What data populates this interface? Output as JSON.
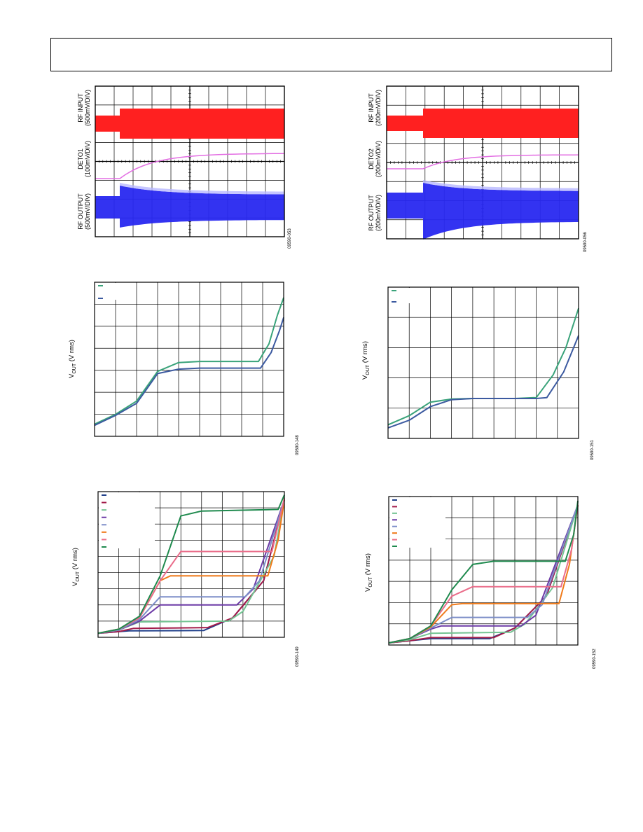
{
  "chart_data": [
    {
      "id": "scope1",
      "type": "line",
      "channels": [
        {
          "label_line1": "RF INPUT",
          "label_line2": "(500mV/DIV)",
          "color": "#ff2020"
        },
        {
          "label_line1": "DETO1",
          "label_line2": "(100mV/DIV)",
          "color": "#e36ee3"
        },
        {
          "label_line1": "RF OUTPUT",
          "label_line2": "(500mV/DIV)",
          "color": "#2828f0"
        }
      ],
      "grid": true,
      "figure_id": "09590-053"
    },
    {
      "id": "scope2",
      "type": "line",
      "channels": [
        {
          "label_line1": "RF INPUT",
          "label_line2": "(200mV/DIV)",
          "color": "#ff2020"
        },
        {
          "label_line1": "DETO2",
          "label_line2": "(200mV/DIV)",
          "color": "#e36ee3"
        },
        {
          "label_line1": "RF OUTPUT",
          "label_line2": "(200mV/DIV)",
          "color": "#2828f0"
        }
      ],
      "grid": true,
      "figure_id": "09590-056"
    },
    {
      "id": "xfer1",
      "type": "line",
      "ylabel_main": "V",
      "ylabel_sub": "OUT",
      "ylabel_tail": " (V rms)",
      "xlim": [
        0,
        9
      ],
      "ylim": [
        0,
        7
      ],
      "grid": true,
      "legend_position": "top-left",
      "series": [
        {
          "color": "#3aa37a",
          "values": [
            [
              0,
              0.55
            ],
            [
              1,
              1.0
            ],
            [
              2,
              1.6
            ],
            [
              3,
              2.95
            ],
            [
              4,
              3.35
            ],
            [
              5,
              3.4
            ],
            [
              6,
              3.4
            ],
            [
              7,
              3.4
            ],
            [
              7.8,
              3.4
            ],
            [
              8.3,
              4.2
            ],
            [
              8.7,
              5.5
            ],
            [
              9,
              6.3
            ]
          ]
        },
        {
          "color": "#3c5aa0",
          "values": [
            [
              0,
              0.5
            ],
            [
              1,
              0.95
            ],
            [
              2,
              1.5
            ],
            [
              3,
              2.85
            ],
            [
              4,
              3.05
            ],
            [
              5,
              3.1
            ],
            [
              6,
              3.1
            ],
            [
              7,
              3.1
            ],
            [
              7.9,
              3.1
            ],
            [
              8.4,
              3.8
            ],
            [
              8.8,
              4.8
            ],
            [
              9,
              5.4
            ]
          ]
        }
      ],
      "figure_id": "09590-148"
    },
    {
      "id": "xfer2",
      "type": "line",
      "ylabel_main": "V",
      "ylabel_sub": "OUT",
      "ylabel_tail": " (V rms)",
      "xlim": [
        0,
        9
      ],
      "ylim": [
        0,
        5
      ],
      "grid": true,
      "legend_position": "top-left",
      "series": [
        {
          "color": "#3aa37a",
          "values": [
            [
              0,
              0.45
            ],
            [
              1,
              0.75
            ],
            [
              2,
              1.2
            ],
            [
              3,
              1.3
            ],
            [
              4,
              1.32
            ],
            [
              5,
              1.32
            ],
            [
              6,
              1.32
            ],
            [
              7,
              1.35
            ],
            [
              7.8,
              2.1
            ],
            [
              8.4,
              3.0
            ],
            [
              9,
              4.3
            ]
          ]
        },
        {
          "color": "#3c5aa0",
          "values": [
            [
              0,
              0.35
            ],
            [
              1,
              0.6
            ],
            [
              2,
              1.05
            ],
            [
              3,
              1.28
            ],
            [
              4,
              1.32
            ],
            [
              5,
              1.32
            ],
            [
              6,
              1.32
            ],
            [
              7,
              1.32
            ],
            [
              7.5,
              1.35
            ],
            [
              8.3,
              2.2
            ],
            [
              9,
              3.4
            ]
          ]
        }
      ],
      "figure_id": "09590-151"
    },
    {
      "id": "xfer3",
      "type": "line",
      "ylabel_main": "V",
      "ylabel_sub": "OUT",
      "ylabel_tail": " (V rms)",
      "xlim": [
        0,
        9
      ],
      "ylim": [
        0,
        9
      ],
      "grid": true,
      "legend_position": "top-left",
      "series": [
        {
          "color": "#1f3f8a",
          "values": [
            [
              0,
              0.25
            ],
            [
              1,
              0.35
            ],
            [
              1.5,
              0.4
            ],
            [
              5.1,
              0.42
            ],
            [
              6.5,
              1.2
            ],
            [
              8,
              3.5
            ],
            [
              9,
              8.5
            ]
          ]
        },
        {
          "color": "#a31c4a",
          "values": [
            [
              0,
              0.25
            ],
            [
              1,
              0.35
            ],
            [
              1.7,
              0.55
            ],
            [
              5.3,
              0.6
            ],
            [
              6.5,
              1.2
            ],
            [
              8,
              3.5
            ],
            [
              9,
              8.5
            ]
          ]
        },
        {
          "color": "#74c493",
          "values": [
            [
              0,
              0.25
            ],
            [
              1,
              0.45
            ],
            [
              2,
              0.95
            ],
            [
              6.3,
              1.0
            ],
            [
              7,
              1.6
            ],
            [
              8.5,
              5.0
            ],
            [
              9,
              8.5
            ]
          ]
        },
        {
          "color": "#6c3aa6",
          "values": [
            [
              0,
              0.25
            ],
            [
              1,
              0.45
            ],
            [
              2,
              1.0
            ],
            [
              3,
              2.0
            ],
            [
              6.7,
              2.0
            ],
            [
              7.5,
              3.0
            ],
            [
              9,
              8.5
            ]
          ]
        },
        {
          "color": "#7c8ec8",
          "values": [
            [
              0,
              0.25
            ],
            [
              1,
              0.45
            ],
            [
              2,
              1.1
            ],
            [
              3,
              2.5
            ],
            [
              7.1,
              2.5
            ],
            [
              7.8,
              3.5
            ],
            [
              9,
              8.5
            ]
          ]
        },
        {
          "color": "#f07b1b",
          "values": [
            [
              0,
              0.25
            ],
            [
              1,
              0.5
            ],
            [
              2,
              1.2
            ],
            [
              3,
              3.5
            ],
            [
              3.5,
              3.8
            ],
            [
              8.2,
              3.8
            ],
            [
              8.7,
              6.0
            ],
            [
              9,
              8.5
            ]
          ]
        },
        {
          "color": "#ea6d8a",
          "values": [
            [
              0,
              0.25
            ],
            [
              1,
              0.5
            ],
            [
              2,
              1.2
            ],
            [
              3,
              3.5
            ],
            [
              4,
              5.3
            ],
            [
              8.4,
              5.3
            ],
            [
              8.8,
              7.5
            ],
            [
              9,
              8.6
            ]
          ]
        },
        {
          "color": "#1f8a4e",
          "values": [
            [
              0,
              0.25
            ],
            [
              1,
              0.5
            ],
            [
              2,
              1.3
            ],
            [
              3,
              3.8
            ],
            [
              4,
              7.5
            ],
            [
              5,
              7.8
            ],
            [
              8.7,
              7.9
            ],
            [
              9,
              8.8
            ]
          ]
        }
      ],
      "figure_id": "09590-149"
    },
    {
      "id": "xfer4",
      "type": "line",
      "ylabel_main": "V",
      "ylabel_sub": "OUT",
      "ylabel_tail": " (V rms)",
      "xlim": [
        0,
        9
      ],
      "ylim": [
        0,
        7
      ],
      "grid": true,
      "legend_position": "top-left",
      "series": [
        {
          "color": "#1f3f8a",
          "values": [
            [
              0,
              0.1
            ],
            [
              1,
              0.2
            ],
            [
              2,
              0.3
            ],
            [
              4.8,
              0.3
            ],
            [
              6,
              0.8
            ],
            [
              7.5,
              2.3
            ],
            [
              9,
              6.6
            ]
          ]
        },
        {
          "color": "#a31c4a",
          "values": [
            [
              0,
              0.1
            ],
            [
              1,
              0.2
            ],
            [
              2,
              0.35
            ],
            [
              5.0,
              0.35
            ],
            [
              6,
              0.8
            ],
            [
              7.5,
              2.3
            ],
            [
              9,
              6.6
            ]
          ]
        },
        {
          "color": "#74c493",
          "values": [
            [
              0,
              0.1
            ],
            [
              1,
              0.25
            ],
            [
              2,
              0.55
            ],
            [
              5.8,
              0.6
            ],
            [
              6.5,
              1.0
            ],
            [
              7.8,
              2.7
            ],
            [
              9,
              6.6
            ]
          ]
        },
        {
          "color": "#6c3aa6",
          "values": [
            [
              0,
              0.1
            ],
            [
              1,
              0.3
            ],
            [
              2,
              0.75
            ],
            [
              2.5,
              0.9
            ],
            [
              6.3,
              0.9
            ],
            [
              7,
              1.4
            ],
            [
              9,
              6.6
            ]
          ]
        },
        {
          "color": "#7c8ec8",
          "values": [
            [
              0,
              0.1
            ],
            [
              1,
              0.3
            ],
            [
              2,
              0.8
            ],
            [
              3,
              1.3
            ],
            [
              6.6,
              1.3
            ],
            [
              7.3,
              1.9
            ],
            [
              9,
              6.6
            ]
          ]
        },
        {
          "color": "#f07b1b",
          "values": [
            [
              0,
              0.1
            ],
            [
              1,
              0.3
            ],
            [
              2,
              0.85
            ],
            [
              3,
              1.9
            ],
            [
              3.5,
              1.95
            ],
            [
              8.1,
              1.95
            ],
            [
              8.6,
              3.8
            ],
            [
              9,
              6.6
            ]
          ]
        },
        {
          "color": "#ea6d8a",
          "values": [
            [
              0,
              0.1
            ],
            [
              1,
              0.3
            ],
            [
              2,
              0.9
            ],
            [
              3,
              2.3
            ],
            [
              4,
              2.75
            ],
            [
              8.2,
              2.75
            ],
            [
              8.7,
              4.5
            ],
            [
              9,
              6.6
            ]
          ]
        },
        {
          "color": "#1f8a4e",
          "values": [
            [
              0,
              0.1
            ],
            [
              1,
              0.3
            ],
            [
              2,
              0.9
            ],
            [
              3,
              2.6
            ],
            [
              4,
              3.8
            ],
            [
              5,
              3.95
            ],
            [
              8.4,
              3.95
            ],
            [
              8.8,
              5.2
            ],
            [
              9,
              6.8
            ]
          ]
        }
      ],
      "figure_id": "09590-152"
    }
  ]
}
